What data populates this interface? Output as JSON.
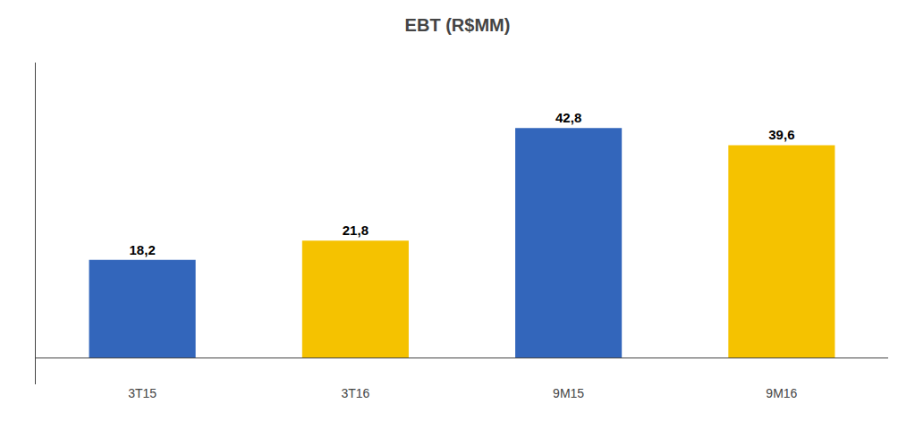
{
  "chart_data": {
    "type": "bar",
    "title": "EBT (R$MM)",
    "categories": [
      "3T15",
      "3T16",
      "9M15",
      "9M16"
    ],
    "values": [
      18.2,
      21.8,
      42.8,
      39.6
    ],
    "value_labels": [
      "18,2",
      "21,8",
      "42,8",
      "39,6"
    ],
    "colors": [
      "#3366BB",
      "#F5C200",
      "#3366BB",
      "#F5C200"
    ],
    "ylim": [
      -5,
      55
    ],
    "yticks": [],
    "grid": false,
    "data_labels": true,
    "tick_labels": "x"
  }
}
